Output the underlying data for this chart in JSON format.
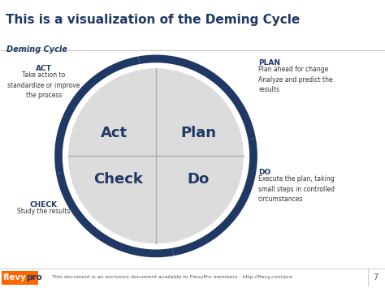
{
  "title": "This is a visualization of the Deming Cycle",
  "subtitle": "Deming Cycle",
  "title_color": "#1F3864",
  "bg_color": "#FFFFFF",
  "diagram_bg": "#EFEFEF",
  "circle_fill": "#DCDCDC",
  "circle_border_color": "#1F3864",
  "divider_color": "#BBBBBB",
  "quadrant_labels": [
    "Act",
    "Plan",
    "Check",
    "Do"
  ],
  "quadrant_label_color": "#1F3864",
  "arrow_color": "#1F3864",
  "side_label_title_color": "#1F3864",
  "side_label_text_color": "#333333",
  "footer_text": "This document is an exclusive document available to FlevyPro members - http://flevy.com/pro",
  "page_number": "7",
  "flevy_orange": "#FF6600",
  "flevy_navy": "#1F3864"
}
